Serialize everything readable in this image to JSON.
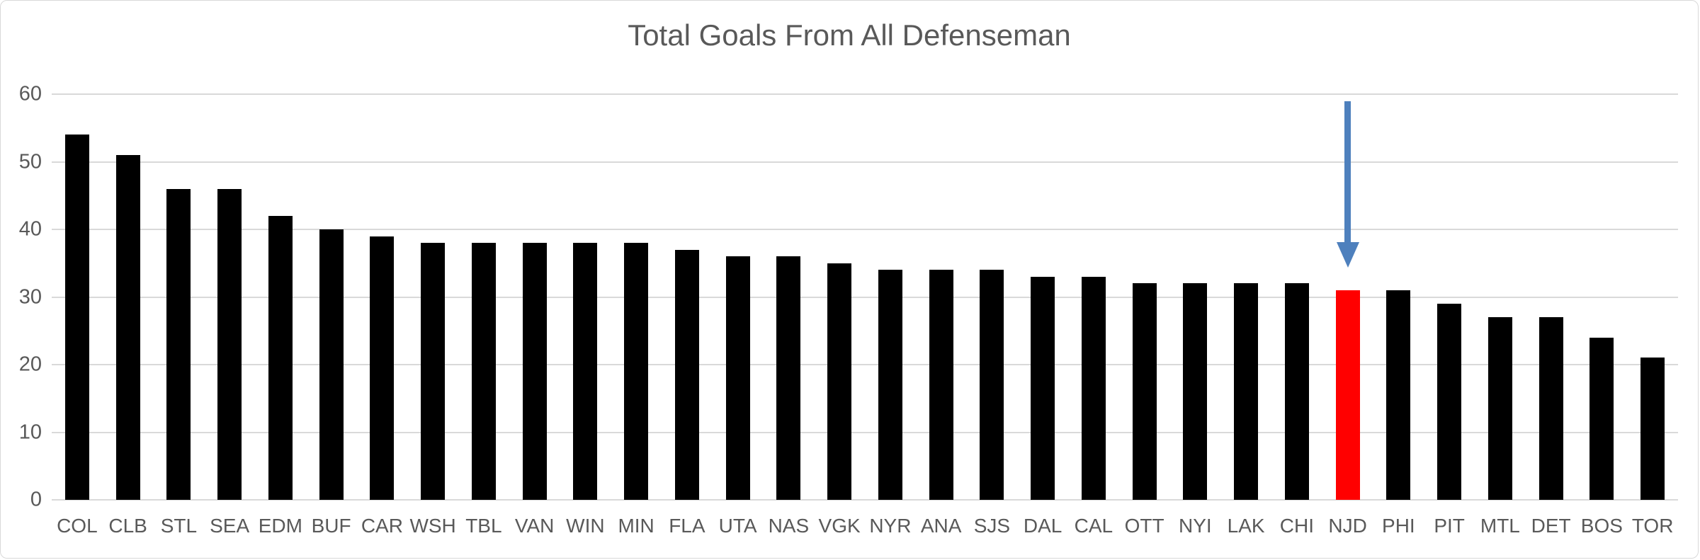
{
  "chart_data": {
    "type": "bar",
    "title": "Total Goals From All Defenseman",
    "categories": [
      "COL",
      "CLB",
      "STL",
      "SEA",
      "EDM",
      "BUF",
      "CAR",
      "WSH",
      "TBL",
      "VAN",
      "WIN",
      "MIN",
      "FLA",
      "UTA",
      "NAS",
      "VGK",
      "NYR",
      "ANA",
      "SJS",
      "DAL",
      "CAL",
      "OTT",
      "NYI",
      "LAK",
      "CHI",
      "NJD",
      "PHI",
      "PIT",
      "MTL",
      "DET",
      "BOS",
      "TOR"
    ],
    "values": [
      54,
      51,
      46,
      46,
      42,
      40,
      39,
      38,
      38,
      38,
      38,
      38,
      37,
      36,
      36,
      35,
      34,
      34,
      34,
      33,
      33,
      32,
      32,
      32,
      32,
      31,
      31,
      29,
      27,
      27,
      24,
      21
    ],
    "xlabel": "",
    "ylabel": "",
    "ylim": [
      0,
      60
    ],
    "yticks": [
      0,
      10,
      20,
      30,
      40,
      50,
      60
    ],
    "grid": true,
    "legend": "none",
    "highlight_category": "NJD",
    "colors": {
      "bar": "#000000",
      "highlight_bar": "#ff0000",
      "gridline": "#d9d9d9",
      "text": "#595959",
      "frame_border": "#d9d9d9",
      "background": "#ffffff",
      "annotation_arrow": "#4e80bd"
    },
    "annotation": {
      "type": "down-arrow",
      "target": "NJD",
      "color": "#4e80bd"
    }
  }
}
